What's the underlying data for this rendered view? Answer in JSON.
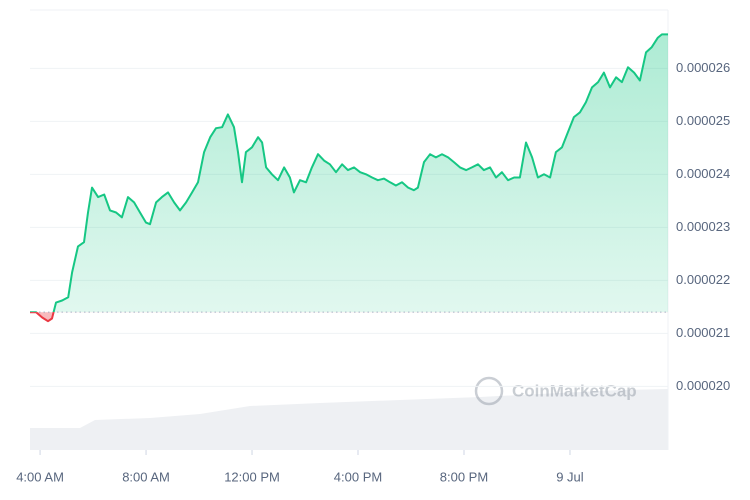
{
  "chart_data": {
    "type": "line",
    "watermark": "CoinMarketCap",
    "color": "#16c784",
    "down_color": "#ea3943",
    "baseline": 2.14e-05,
    "grid": true,
    "xlim": [
      3.62,
      27.7
    ],
    "xticks": [
      {
        "value": 4,
        "label": "4:00 AM"
      },
      {
        "value": 8,
        "label": "8:00 AM"
      },
      {
        "value": 12,
        "label": "12:00 PM"
      },
      {
        "value": 16,
        "label": "4:00 PM"
      },
      {
        "value": 20,
        "label": "8:00 PM"
      },
      {
        "value": 24,
        "label": "9 Jul"
      }
    ],
    "ylim": [
      1.88e-05,
      2.71e-05
    ],
    "yticks": [
      {
        "value": 2e-05,
        "label": "0.000020"
      },
      2.1e-05,
      2.2e-05,
      2.3e-05,
      2.4e-05,
      2.5e-05,
      2.6e-05
    ],
    "x": [
      3.62,
      3.85,
      4.08,
      4.3,
      4.45,
      4.6,
      4.83,
      5.06,
      5.21,
      5.43,
      5.66,
      5.81,
      5.96,
      6.19,
      6.42,
      6.64,
      6.87,
      7.09,
      7.32,
      7.55,
      7.77,
      8,
      8.15,
      8.38,
      8.6,
      8.83,
      9.06,
      9.28,
      9.51,
      9.74,
      9.96,
      10.19,
      10.42,
      10.64,
      10.87,
      11.09,
      11.32,
      11.47,
      11.62,
      11.77,
      12,
      12.23,
      12.38,
      12.53,
      12.75,
      12.98,
      13.21,
      13.43,
      13.58,
      13.81,
      14.04,
      14.26,
      14.49,
      14.72,
      14.94,
      15.17,
      15.4,
      15.62,
      15.85,
      16.08,
      16.3,
      16.53,
      16.75,
      16.98,
      17.21,
      17.43,
      17.66,
      17.89,
      18.11,
      18.26,
      18.49,
      18.72,
      18.94,
      19.17,
      19.4,
      19.62,
      19.85,
      20.08,
      20.3,
      20.53,
      20.75,
      20.98,
      21.21,
      21.43,
      21.66,
      21.89,
      22.11,
      22.34,
      22.57,
      22.79,
      23.02,
      23.25,
      23.47,
      23.7,
      23.92,
      24.15,
      24.38,
      24.6,
      24.83,
      25.06,
      25.28,
      25.51,
      25.74,
      25.96,
      26.19,
      26.42,
      26.64,
      26.87,
      27.09,
      27.32,
      27.47,
      27.7
    ],
    "values": [
      2.14e-05,
      2.14e-05,
      2.13e-05,
      2.123e-05,
      2.128e-05,
      2.158e-05,
      2.162e-05,
      2.168e-05,
      2.215e-05,
      2.264e-05,
      2.272e-05,
      2.328e-05,
      2.375e-05,
      2.357e-05,
      2.362e-05,
      2.332e-05,
      2.328e-05,
      2.319e-05,
      2.357e-05,
      2.347e-05,
      2.328e-05,
      2.309e-05,
      2.306e-05,
      2.347e-05,
      2.357e-05,
      2.366e-05,
      2.347e-05,
      2.332e-05,
      2.347e-05,
      2.366e-05,
      2.385e-05,
      2.442e-05,
      2.47e-05,
      2.487e-05,
      2.489e-05,
      2.513e-05,
      2.489e-05,
      2.442e-05,
      2.385e-05,
      2.442e-05,
      2.451e-05,
      2.47e-05,
      2.46e-05,
      2.413e-05,
      2.4e-05,
      2.389e-05,
      2.413e-05,
      2.394e-05,
      2.366e-05,
      2.389e-05,
      2.385e-05,
      2.413e-05,
      2.438e-05,
      2.426e-05,
      2.419e-05,
      2.404e-05,
      2.419e-05,
      2.408e-05,
      2.413e-05,
      2.404e-05,
      2.4e-05,
      2.394e-05,
      2.389e-05,
      2.392e-05,
      2.385e-05,
      2.379e-05,
      2.385e-05,
      2.375e-05,
      2.37e-05,
      2.375e-05,
      2.423e-05,
      2.438e-05,
      2.432e-05,
      2.438e-05,
      2.432e-05,
      2.423e-05,
      2.413e-05,
      2.408e-05,
      2.413e-05,
      2.419e-05,
      2.408e-05,
      2.413e-05,
      2.394e-05,
      2.404e-05,
      2.389e-05,
      2.394e-05,
      2.394e-05,
      2.46e-05,
      2.432e-05,
      2.394e-05,
      2.4e-05,
      2.394e-05,
      2.442e-05,
      2.451e-05,
      2.479e-05,
      2.508e-05,
      2.517e-05,
      2.536e-05,
      2.564e-05,
      2.574e-05,
      2.592e-05,
      2.564e-05,
      2.583e-05,
      2.574e-05,
      2.602e-05,
      2.592e-05,
      2.577e-05,
      2.63e-05,
      2.64e-05,
      2.658e-05,
      2.664e-05,
      2.664e-05
    ]
  }
}
